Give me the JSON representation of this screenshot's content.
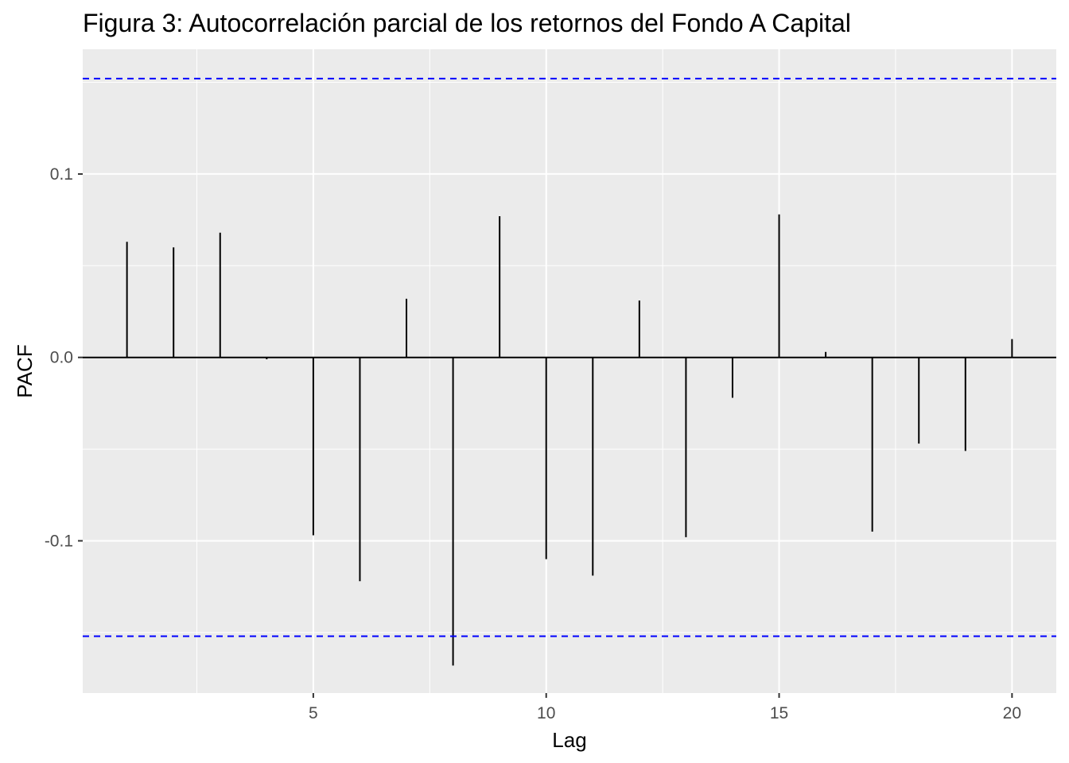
{
  "chart_data": {
    "type": "bar",
    "title": "Figura 3: Autocorrelación parcial de los retornos del Fondo A Capital",
    "xlabel": "Lag",
    "ylabel": "PACF",
    "x": [
      1,
      2,
      3,
      4,
      5,
      6,
      7,
      8,
      9,
      10,
      11,
      12,
      13,
      14,
      15,
      16,
      17,
      18,
      19,
      20
    ],
    "values": [
      0.063,
      0.06,
      0.068,
      -0.001,
      -0.097,
      -0.122,
      0.032,
      -0.168,
      0.077,
      -0.11,
      -0.119,
      0.031,
      -0.098,
      -0.022,
      0.078,
      0.003,
      -0.095,
      -0.047,
      -0.051,
      0.01
    ],
    "confidence_bound": 0.152,
    "x_ticks": [
      5,
      10,
      15,
      20
    ],
    "x_tick_labels": [
      "5",
      "10",
      "15",
      "20"
    ],
    "y_ticks": [
      -0.1,
      0.0,
      0.1
    ],
    "y_tick_labels": [
      "-0.1",
      "0.0",
      "0.1"
    ],
    "xlim": [
      0.05,
      20.95
    ],
    "ylim": [
      -0.183,
      0.168
    ],
    "grid": true,
    "colors": {
      "panel_background": "#ebebeb",
      "grid": "#ffffff",
      "bars": "#000000",
      "confidence_lines": "#0000ff"
    }
  }
}
